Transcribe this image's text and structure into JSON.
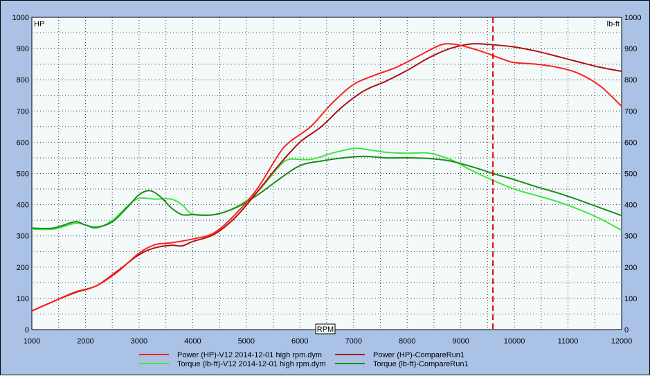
{
  "chart_data": {
    "type": "line",
    "xlabel": "RPM",
    "ylabel_left": "HP",
    "ylabel_right": "lb-ft",
    "xlim": [
      1000,
      12000
    ],
    "ylim": [
      0,
      1000
    ],
    "x_ticks": [
      1000,
      2000,
      3000,
      4000,
      5000,
      6000,
      7000,
      8000,
      9000,
      10000,
      11000,
      12000
    ],
    "y_ticks": [
      0,
      100,
      200,
      300,
      400,
      500,
      600,
      700,
      800,
      900,
      1000
    ],
    "grid": true,
    "marker_line": {
      "x": 9600,
      "color": "#dd0000",
      "style": "dashed"
    },
    "legend_placement": "bottom",
    "series": [
      {
        "name": "Power (HP)-V12 2014-12-01 high rpm.dym",
        "color": "#ff1e1e",
        "x": [
          1000,
          1400,
          1800,
          2200,
          2600,
          3000,
          3300,
          3600,
          4000,
          4400,
          4800,
          5200,
          5600,
          5800,
          6200,
          6600,
          7000,
          7400,
          7800,
          8200,
          8600,
          8800,
          9000,
          9400,
          9800,
          10000,
          10400,
          10800,
          11200,
          11600,
          12000
        ],
        "values": [
          60,
          90,
          120,
          140,
          185,
          245,
          272,
          278,
          290,
          310,
          370,
          450,
          560,
          600,
          650,
          725,
          785,
          815,
          840,
          875,
          910,
          915,
          910,
          890,
          865,
          855,
          850,
          840,
          820,
          780,
          715
        ]
      },
      {
        "name": "Power (HP)-CompareRun1",
        "color": "#b01010",
        "x": [
          1000,
          1400,
          1800,
          2200,
          2600,
          3000,
          3300,
          3600,
          3800,
          4000,
          4400,
          4800,
          5200,
          5600,
          6000,
          6400,
          6800,
          7200,
          7600,
          8000,
          8400,
          8800,
          9200,
          9600,
          10000,
          10400,
          10800,
          11200,
          11600,
          12000
        ],
        "values": [
          60,
          90,
          118,
          140,
          188,
          240,
          262,
          270,
          268,
          282,
          305,
          360,
          440,
          525,
          600,
          650,
          715,
          765,
          795,
          830,
          870,
          900,
          915,
          912,
          905,
          892,
          875,
          857,
          840,
          827
        ]
      },
      {
        "name": "Torque (lb-ft)-V12 2014-12-01 high rpm.dym",
        "color": "#3ee63e",
        "x": [
          1000,
          1400,
          1800,
          2000,
          2200,
          2500,
          2800,
          3000,
          3300,
          3600,
          3800,
          4000,
          4400,
          4800,
          5200,
          5600,
          5800,
          6200,
          6600,
          7000,
          7200,
          7600,
          8000,
          8400,
          8800,
          9200,
          9600,
          10000,
          10400,
          10800,
          11200,
          11600,
          12000
        ],
        "values": [
          322,
          322,
          340,
          335,
          325,
          350,
          398,
          420,
          418,
          418,
          400,
          370,
          368,
          392,
          440,
          520,
          545,
          545,
          565,
          580,
          578,
          568,
          565,
          565,
          545,
          510,
          478,
          450,
          430,
          410,
          385,
          355,
          318
        ]
      },
      {
        "name": "Torque (lb-ft)-CompareRun1",
        "color": "#1e8a1e",
        "x": [
          1000,
          1400,
          1800,
          2000,
          2200,
          2500,
          2800,
          3000,
          3200,
          3400,
          3600,
          3800,
          4000,
          4400,
          4800,
          5200,
          5600,
          6000,
          6400,
          6800,
          7200,
          7600,
          8000,
          8400,
          8800,
          9200,
          9600,
          10000,
          10400,
          10800,
          11200,
          11600,
          12000
        ],
        "values": [
          325,
          325,
          345,
          335,
          328,
          345,
          395,
          432,
          445,
          425,
          390,
          368,
          368,
          368,
          390,
          430,
          480,
          525,
          540,
          550,
          555,
          550,
          550,
          548,
          540,
          522,
          500,
          480,
          458,
          438,
          415,
          390,
          365
        ]
      }
    ]
  }
}
